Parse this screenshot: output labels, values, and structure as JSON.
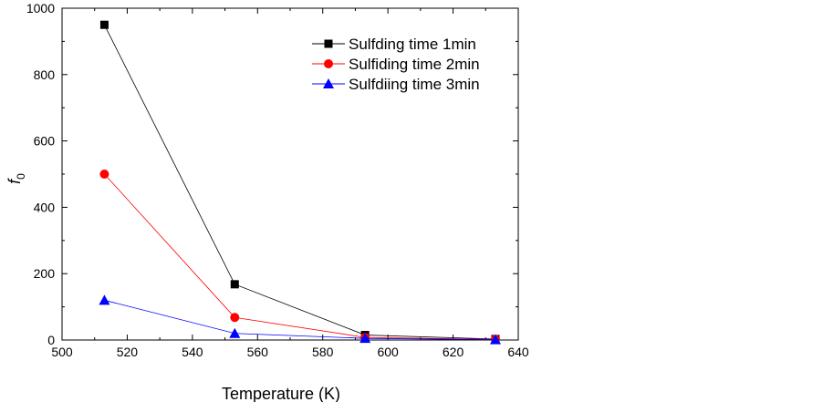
{
  "chart_data": {
    "type": "line",
    "title": "",
    "xlabel": "Temperature (K)",
    "ylabel": "f",
    "ylabel_subscript": "0",
    "xlim": [
      500,
      640
    ],
    "ylim": [
      0,
      1000
    ],
    "xticks": [
      500,
      520,
      540,
      560,
      580,
      600,
      620,
      640
    ],
    "yticks": [
      0,
      200,
      400,
      600,
      800,
      1000
    ],
    "legend_position": "top-right",
    "grid": false,
    "series": [
      {
        "name": "Sulfding time 1min",
        "color": "#000000",
        "marker": "square",
        "x": [
          513,
          553,
          593,
          633
        ],
        "y": [
          950,
          168,
          15,
          3
        ]
      },
      {
        "name": "Sulfiding time 2min",
        "color": "#ff0000",
        "marker": "circle",
        "x": [
          513,
          553,
          593,
          633
        ],
        "y": [
          500,
          68,
          8,
          2
        ]
      },
      {
        "name": "Sulfdiing time 3min",
        "color": "#0000ff",
        "marker": "triangle",
        "x": [
          513,
          553,
          593,
          633
        ],
        "y": [
          120,
          20,
          5,
          1
        ]
      }
    ]
  }
}
